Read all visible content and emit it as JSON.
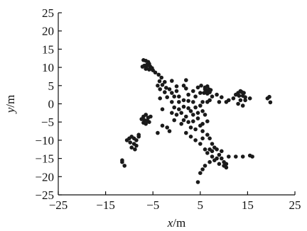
{
  "chart_data": {
    "type": "scatter",
    "title": "",
    "xlabel": {
      "var": "x",
      "unit": "/m"
    },
    "ylabel": {
      "var": "y",
      "unit": "/m"
    },
    "xlim": [
      -25,
      25
    ],
    "ylim": [
      -25,
      25
    ],
    "xticks": [
      -25,
      -15,
      -5,
      5,
      15,
      25
    ],
    "yticks": [
      25,
      20,
      15,
      10,
      5,
      0,
      -5,
      -10,
      -15,
      -20,
      -25
    ],
    "grid": false,
    "legend": "none",
    "series": [
      {
        "points": [
          [
            -7.0,
            12.0
          ],
          [
            -6.5,
            11.8
          ],
          [
            -6.0,
            11.5
          ],
          [
            -5.8,
            11.0
          ],
          [
            -6.2,
            10.8
          ],
          [
            -6.8,
            10.5
          ],
          [
            -7.2,
            10.2
          ],
          [
            -6.4,
            10.0
          ],
          [
            -5.6,
            10.3
          ],
          [
            -5.2,
            9.8
          ],
          [
            -5.8,
            9.4
          ],
          [
            -6.5,
            9.6
          ],
          [
            -5.0,
            9.2
          ],
          [
            -4.5,
            8.6
          ],
          [
            -3.8,
            8.0
          ],
          [
            -3.2,
            7.2
          ],
          [
            -3.6,
            6.2
          ],
          [
            -2.5,
            6.0
          ],
          [
            -1.0,
            6.3
          ],
          [
            1.5,
            5.0
          ],
          [
            -3.0,
            5.2
          ],
          [
            -2.2,
            4.4
          ],
          [
            -3.5,
            4.0
          ],
          [
            -1.5,
            4.0
          ],
          [
            0.0,
            4.8
          ],
          [
            2.0,
            4.2
          ],
          [
            3.5,
            3.5
          ],
          [
            -2.5,
            3.2
          ],
          [
            -1.0,
            3.0
          ],
          [
            0.0,
            3.5
          ],
          [
            -2.0,
            1.8
          ],
          [
            0.5,
            2.0
          ],
          [
            2.5,
            2.5
          ],
          [
            4.0,
            2.0
          ],
          [
            5.2,
            5.0
          ],
          [
            6.0,
            4.5
          ],
          [
            6.5,
            4.8
          ],
          [
            6.0,
            4.0
          ],
          [
            6.8,
            4.0
          ],
          [
            7.2,
            3.8
          ],
          [
            7.0,
            3.2
          ],
          [
            6.4,
            3.5
          ],
          [
            5.8,
            3.0
          ],
          [
            6.5,
            2.8
          ],
          [
            7.5,
            2.0
          ],
          [
            6.5,
            0.5
          ],
          [
            7.0,
            1.0
          ],
          [
            5.5,
            0.5
          ],
          [
            9.5,
            1.8
          ],
          [
            10.5,
            0.5
          ],
          [
            11.0,
            1.0
          ],
          [
            12.0,
            1.5
          ],
          [
            12.5,
            2.5
          ],
          [
            13.0,
            3.0
          ],
          [
            13.5,
            3.5
          ],
          [
            13.8,
            3.2
          ],
          [
            14.2,
            3.0
          ],
          [
            13.2,
            2.2
          ],
          [
            14.0,
            2.2
          ],
          [
            14.5,
            1.8
          ],
          [
            13.5,
            1.0
          ],
          [
            14.5,
            1.0
          ],
          [
            15.5,
            1.5
          ],
          [
            13.0,
            0.0
          ],
          [
            14.0,
            -0.5
          ],
          [
            19.2,
            1.5
          ],
          [
            19.6,
            1.9
          ],
          [
            19.8,
            0.4
          ],
          [
            0.5,
            0.5
          ],
          [
            1.5,
            1.0
          ],
          [
            2.5,
            0.8
          ],
          [
            3.5,
            0.5
          ],
          [
            -0.5,
            -1.0
          ],
          [
            0.5,
            -1.5
          ],
          [
            1.5,
            -0.8
          ],
          [
            2.5,
            -1.2
          ],
          [
            3.0,
            -2.0
          ],
          [
            4.0,
            -1.0
          ],
          [
            5.0,
            -0.5
          ],
          [
            -1.0,
            -2.5
          ],
          [
            0.0,
            -3.0
          ],
          [
            1.0,
            -2.5
          ],
          [
            2.0,
            -3.5
          ],
          [
            3.5,
            -3.0
          ],
          [
            4.5,
            -2.5
          ],
          [
            5.5,
            -2.0
          ],
          [
            6.0,
            -3.0
          ],
          [
            1.5,
            -4.5
          ],
          [
            2.5,
            -5.0
          ],
          [
            3.5,
            -4.8
          ],
          [
            4.5,
            -4.0
          ],
          [
            5.5,
            -5.5
          ],
          [
            6.5,
            -4.8
          ],
          [
            3.0,
            -6.5
          ],
          [
            4.0,
            -7.0
          ],
          [
            5.0,
            -6.0
          ],
          [
            5.5,
            -7.5
          ],
          [
            6.5,
            -8.5
          ],
          [
            7.0,
            -9.5
          ],
          [
            5.5,
            -9.5
          ],
          [
            7.5,
            -11.0
          ],
          [
            8.0,
            -12.0
          ],
          [
            8.5,
            -12.5
          ],
          [
            9.0,
            -14.0
          ],
          [
            9.5,
            -15.0
          ],
          [
            10.0,
            -16.0
          ],
          [
            10.5,
            -16.5
          ],
          [
            9.0,
            -16.5
          ],
          [
            8.5,
            -15.0
          ],
          [
            10.0,
            -17.0
          ],
          [
            10.5,
            -17.5
          ],
          [
            11.0,
            -14.5
          ],
          [
            9.5,
            -13.0
          ],
          [
            7.5,
            -14.5
          ],
          [
            7.0,
            -16.0
          ],
          [
            6.5,
            -13.5
          ],
          [
            6.0,
            -17.0
          ],
          [
            5.5,
            -18.0
          ],
          [
            5.0,
            -19.0
          ],
          [
            4.5,
            -21.5
          ],
          [
            7.0,
            -12.5
          ],
          [
            8.0,
            -15.5
          ],
          [
            -3.0,
            -6.0
          ],
          [
            -2.0,
            -6.5
          ],
          [
            -1.5,
            -7.5
          ],
          [
            -4.0,
            -8.0
          ],
          [
            -6.5,
            -3.0
          ],
          [
            -7.0,
            -3.5
          ],
          [
            -6.0,
            -3.8
          ],
          [
            -6.8,
            -4.5
          ],
          [
            -7.4,
            -4.2
          ],
          [
            -6.2,
            -4.6
          ],
          [
            -5.8,
            -5.0
          ],
          [
            -6.5,
            -5.5
          ],
          [
            -7.0,
            -5.2
          ],
          [
            -5.5,
            -3.5
          ],
          [
            -8.0,
            -8.5
          ],
          [
            -9.5,
            -9.0
          ],
          [
            -10.0,
            -9.5
          ],
          [
            -9.0,
            -9.5
          ],
          [
            -8.5,
            -10.0
          ],
          [
            -10.5,
            -10.0
          ],
          [
            -9.8,
            -10.6
          ],
          [
            -9.0,
            -11.0
          ],
          [
            -8.5,
            -11.5
          ],
          [
            -9.5,
            -12.0
          ],
          [
            -8.8,
            -12.5
          ],
          [
            -8.0,
            -9.0
          ],
          [
            -11.5,
            -16.0
          ],
          [
            -11.0,
            -17.0
          ],
          [
            -11.5,
            -15.5
          ],
          [
            12.5,
            -14.5
          ],
          [
            14.0,
            -14.5
          ],
          [
            15.5,
            -14.2
          ],
          [
            16.0,
            -14.5
          ],
          [
            -3.0,
            -1.5
          ],
          [
            -1.0,
            0.5
          ],
          [
            -0.5,
            -4.5
          ],
          [
            1.0,
            -5.5
          ],
          [
            2.0,
            -8.0
          ],
          [
            3.0,
            -9.0
          ],
          [
            4.0,
            -10.0
          ],
          [
            5.0,
            -11.0
          ],
          [
            6.0,
            -12.5
          ],
          [
            7.5,
            -13.0
          ],
          [
            -0.5,
            2.0
          ],
          [
            -4.0,
            5.0
          ],
          [
            2.0,
            6.5
          ],
          [
            4.5,
            4.5
          ],
          [
            5.0,
            3.0
          ],
          [
            8.5,
            2.5
          ],
          [
            9.0,
            0.5
          ],
          [
            -3.5,
            1.5
          ]
        ]
      }
    ]
  }
}
